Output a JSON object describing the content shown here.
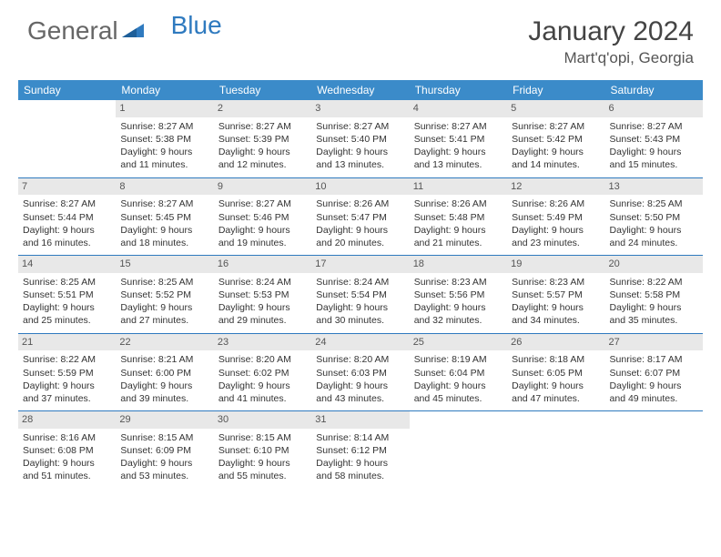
{
  "brand": {
    "part1": "General",
    "part2": "Blue"
  },
  "title": "January 2024",
  "location": "Mart'q'opi, Georgia",
  "colors": {
    "header_bg": "#3b8bc9",
    "header_text": "#ffffff",
    "row_divider": "#2f7abf",
    "daynum_bg": "#e8e8e8",
    "text": "#333333",
    "logo_blue": "#2f7abf",
    "logo_gray": "#666666"
  },
  "weekdays": [
    "Sunday",
    "Monday",
    "Tuesday",
    "Wednesday",
    "Thursday",
    "Friday",
    "Saturday"
  ],
  "start_offset": 1,
  "days": [
    {
      "n": 1,
      "sunrise": "8:27 AM",
      "sunset": "5:38 PM",
      "daylight": "9 hours and 11 minutes."
    },
    {
      "n": 2,
      "sunrise": "8:27 AM",
      "sunset": "5:39 PM",
      "daylight": "9 hours and 12 minutes."
    },
    {
      "n": 3,
      "sunrise": "8:27 AM",
      "sunset": "5:40 PM",
      "daylight": "9 hours and 13 minutes."
    },
    {
      "n": 4,
      "sunrise": "8:27 AM",
      "sunset": "5:41 PM",
      "daylight": "9 hours and 13 minutes."
    },
    {
      "n": 5,
      "sunrise": "8:27 AM",
      "sunset": "5:42 PM",
      "daylight": "9 hours and 14 minutes."
    },
    {
      "n": 6,
      "sunrise": "8:27 AM",
      "sunset": "5:43 PM",
      "daylight": "9 hours and 15 minutes."
    },
    {
      "n": 7,
      "sunrise": "8:27 AM",
      "sunset": "5:44 PM",
      "daylight": "9 hours and 16 minutes."
    },
    {
      "n": 8,
      "sunrise": "8:27 AM",
      "sunset": "5:45 PM",
      "daylight": "9 hours and 18 minutes."
    },
    {
      "n": 9,
      "sunrise": "8:27 AM",
      "sunset": "5:46 PM",
      "daylight": "9 hours and 19 minutes."
    },
    {
      "n": 10,
      "sunrise": "8:26 AM",
      "sunset": "5:47 PM",
      "daylight": "9 hours and 20 minutes."
    },
    {
      "n": 11,
      "sunrise": "8:26 AM",
      "sunset": "5:48 PM",
      "daylight": "9 hours and 21 minutes."
    },
    {
      "n": 12,
      "sunrise": "8:26 AM",
      "sunset": "5:49 PM",
      "daylight": "9 hours and 23 minutes."
    },
    {
      "n": 13,
      "sunrise": "8:25 AM",
      "sunset": "5:50 PM",
      "daylight": "9 hours and 24 minutes."
    },
    {
      "n": 14,
      "sunrise": "8:25 AM",
      "sunset": "5:51 PM",
      "daylight": "9 hours and 25 minutes."
    },
    {
      "n": 15,
      "sunrise": "8:25 AM",
      "sunset": "5:52 PM",
      "daylight": "9 hours and 27 minutes."
    },
    {
      "n": 16,
      "sunrise": "8:24 AM",
      "sunset": "5:53 PM",
      "daylight": "9 hours and 29 minutes."
    },
    {
      "n": 17,
      "sunrise": "8:24 AM",
      "sunset": "5:54 PM",
      "daylight": "9 hours and 30 minutes."
    },
    {
      "n": 18,
      "sunrise": "8:23 AM",
      "sunset": "5:56 PM",
      "daylight": "9 hours and 32 minutes."
    },
    {
      "n": 19,
      "sunrise": "8:23 AM",
      "sunset": "5:57 PM",
      "daylight": "9 hours and 34 minutes."
    },
    {
      "n": 20,
      "sunrise": "8:22 AM",
      "sunset": "5:58 PM",
      "daylight": "9 hours and 35 minutes."
    },
    {
      "n": 21,
      "sunrise": "8:22 AM",
      "sunset": "5:59 PM",
      "daylight": "9 hours and 37 minutes."
    },
    {
      "n": 22,
      "sunrise": "8:21 AM",
      "sunset": "6:00 PM",
      "daylight": "9 hours and 39 minutes."
    },
    {
      "n": 23,
      "sunrise": "8:20 AM",
      "sunset": "6:02 PM",
      "daylight": "9 hours and 41 minutes."
    },
    {
      "n": 24,
      "sunrise": "8:20 AM",
      "sunset": "6:03 PM",
      "daylight": "9 hours and 43 minutes."
    },
    {
      "n": 25,
      "sunrise": "8:19 AM",
      "sunset": "6:04 PM",
      "daylight": "9 hours and 45 minutes."
    },
    {
      "n": 26,
      "sunrise": "8:18 AM",
      "sunset": "6:05 PM",
      "daylight": "9 hours and 47 minutes."
    },
    {
      "n": 27,
      "sunrise": "8:17 AM",
      "sunset": "6:07 PM",
      "daylight": "9 hours and 49 minutes."
    },
    {
      "n": 28,
      "sunrise": "8:16 AM",
      "sunset": "6:08 PM",
      "daylight": "9 hours and 51 minutes."
    },
    {
      "n": 29,
      "sunrise": "8:15 AM",
      "sunset": "6:09 PM",
      "daylight": "9 hours and 53 minutes."
    },
    {
      "n": 30,
      "sunrise": "8:15 AM",
      "sunset": "6:10 PM",
      "daylight": "9 hours and 55 minutes."
    },
    {
      "n": 31,
      "sunrise": "8:14 AM",
      "sunset": "6:12 PM",
      "daylight": "9 hours and 58 minutes."
    }
  ],
  "labels": {
    "sunrise": "Sunrise:",
    "sunset": "Sunset:",
    "daylight": "Daylight:"
  }
}
